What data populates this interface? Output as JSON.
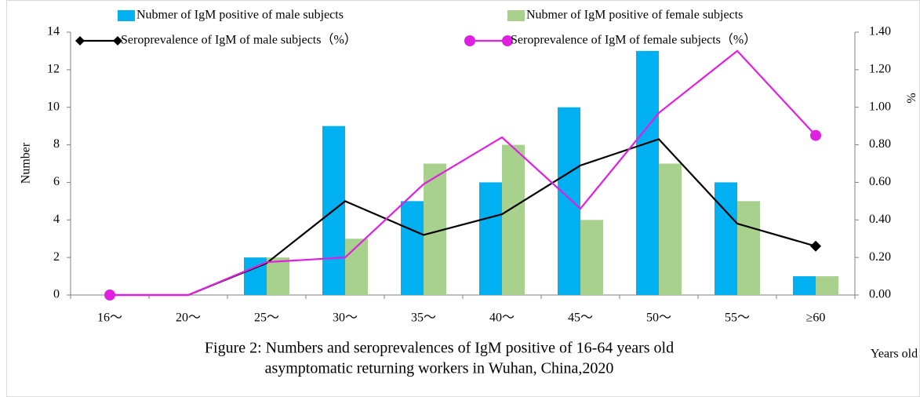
{
  "chart_data": {
    "type": "combo",
    "title": [
      "Figure 2: Numbers and seroprevalences of IgM positive of 16-64 years old",
      "asymptomatic returning workers in Wuhan, China,2020"
    ],
    "x_label": "Years old",
    "y_label": "Number",
    "y2_label": "%",
    "categories": [
      "16～",
      "20～",
      "25～",
      "30～",
      "35～",
      "40～",
      "45～",
      "50～",
      "55～",
      "≥60"
    ],
    "series": [
      {
        "name": "Nubmer of IgM positive of male subjects",
        "type": "bar",
        "color": "#00b0f0",
        "values": [
          0,
          0,
          2,
          9,
          5,
          6,
          10,
          13,
          6,
          1
        ]
      },
      {
        "name": "Nubmer of IgM positive of female subjects",
        "type": "bar",
        "color": "#a9d18e",
        "values": [
          0,
          0,
          2,
          3,
          7,
          8,
          4,
          7,
          5,
          1
        ]
      },
      {
        "name": "Seroprevalence of IgM of male subjects（%）",
        "type": "line",
        "axis": "y2",
        "marker": "diamond",
        "color": "#000000",
        "values": [
          0,
          0,
          0.17,
          0.5,
          0.32,
          0.43,
          0.69,
          0.83,
          0.38,
          0.26
        ]
      },
      {
        "name": "Seroprevalence of IgM of female subjects（%）",
        "type": "line",
        "axis": "y2",
        "marker": "circle",
        "color": "#e020e0",
        "values": [
          0,
          0,
          0.175,
          0.2,
          0.59,
          0.84,
          0.46,
          0.97,
          1.3,
          0.85
        ]
      }
    ],
    "ylim": [
      0,
      14
    ],
    "yticks": [
      0,
      2,
      4,
      6,
      8,
      10,
      12,
      14
    ],
    "y2lim": [
      0,
      1.4
    ],
    "y2ticks": [
      {
        "value": 0,
        "label": "0.00"
      },
      {
        "value": 0.2,
        "label": "0.20"
      },
      {
        "value": 0.4,
        "label": "0.40"
      },
      {
        "value": 0.6,
        "label": "0.60"
      },
      {
        "value": 0.8,
        "label": "0.80"
      },
      {
        "value": 1.0,
        "label": "1.00"
      },
      {
        "value": 1.2,
        "label": "1.20"
      },
      {
        "value": 1.4,
        "label": "1.40"
      }
    ],
    "legend": "top"
  }
}
